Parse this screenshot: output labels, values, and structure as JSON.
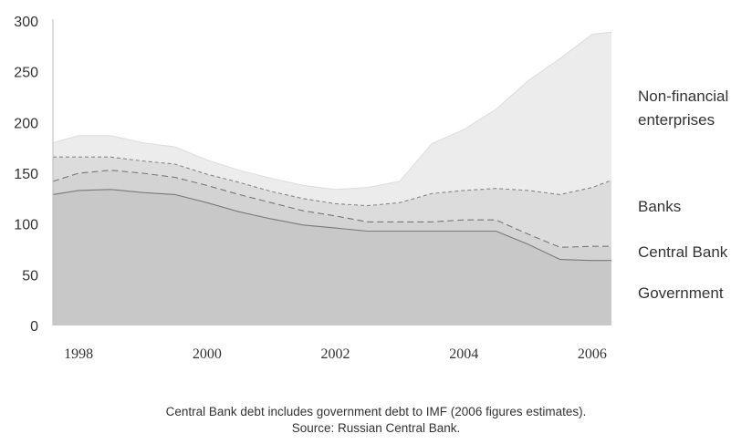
{
  "chart_data": {
    "type": "area",
    "stacked": true,
    "x": [
      1997.6,
      1998,
      1998.5,
      1999,
      1999.5,
      2000,
      2000.5,
      2001,
      2001.5,
      2002,
      2002.5,
      2003,
      2003.5,
      2004,
      2004.5,
      2005,
      2005.5,
      2006,
      2006.3
    ],
    "series": [
      {
        "name": "Government",
        "values": [
          129,
          133,
          134,
          131,
          129,
          121,
          112,
          105,
          99,
          96,
          93,
          93,
          93,
          93,
          93,
          80,
          65,
          64,
          64
        ],
        "color": "#c8c8c8"
      },
      {
        "name": "Central Bank",
        "values": [
          13,
          17,
          19,
          19,
          17,
          17,
          17,
          16,
          14,
          12,
          9,
          9,
          9,
          11,
          11,
          10,
          12,
          14,
          14
        ],
        "color": "#d3d3d3"
      },
      {
        "name": "Banks",
        "values": [
          24,
          16,
          13,
          12,
          13,
          11,
          12,
          11,
          12,
          12,
          16,
          19,
          28,
          29,
          31,
          43,
          52,
          58,
          65
        ],
        "color": "#dcdcdc"
      },
      {
        "name": "Non-financial enterprises",
        "values": [
          14,
          21,
          21,
          18,
          17,
          14,
          12,
          13,
          13,
          14,
          18,
          21,
          49,
          60,
          78,
          108,
          134,
          151,
          146
        ],
        "color": "#ececec"
      }
    ],
    "x_ticks": [
      "1998",
      "2000",
      "2002",
      "2004",
      "2006"
    ],
    "y_ticks": [
      "0",
      "50",
      "100",
      "150",
      "200",
      "250",
      "300"
    ],
    "ylim": [
      0,
      300
    ],
    "xlim": [
      1997.6,
      2006.3
    ],
    "legend": "right, labels beside areas",
    "grid": false
  },
  "labels": {
    "nonfin_line1": "Non-financial",
    "nonfin_line2": "enterprises",
    "banks": "Banks",
    "central_bank": "Central Bank",
    "government": "Government"
  },
  "caption": {
    "line1": "Central Bank debt includes government debt to IMF (2006 figures estimates).",
    "line2": "Source: Russian Central Bank."
  }
}
